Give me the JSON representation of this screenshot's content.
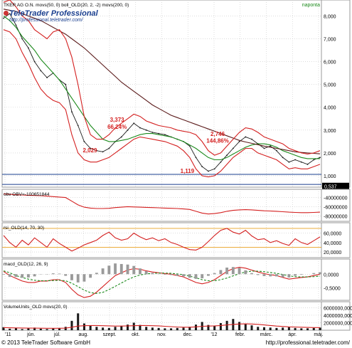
{
  "footer": {
    "copyright": "© 2013 TeleTrader Software GmbH",
    "url": "http://professional.teletrader.com/"
  },
  "logo": {
    "name": "TeleTrader Professional",
    "url": "http://professional.teletrader.com/"
  },
  "chart_data": [
    {
      "panel": "price",
      "type": "line",
      "legend_text": "TKER AG O.N.  movs(50, 0)  boll_OLD(20, 2, -2)  movs(200, 0)",
      "period_label": "naponta",
      "x_labels": [
        "'11",
        "jún.",
        "júl.",
        "aug.",
        "szept.",
        "okt.",
        "nov.",
        "dec.",
        "'12",
        "febr.",
        "márc.",
        "ápr.",
        "máj."
      ],
      "y_ticks": [
        "8,000",
        "7,000",
        "6,000",
        "5,000",
        "4,000",
        "3,000",
        "2,000",
        "1,000"
      ],
      "ylim": [
        0.5,
        8.7
      ],
      "y_values": [
        8,
        7,
        6,
        5,
        4,
        3,
        2,
        1
      ],
      "last_value_badge": "0,537",
      "annotations": [
        {
          "label": "3,373",
          "x": 0.36,
          "y": 3.373
        },
        {
          "label": "66,24%",
          "x": 0.36,
          "y": 3.05
        },
        {
          "label": "2,029",
          "x": 0.275,
          "y": 2.029
        },
        {
          "label": "2,746",
          "x": 0.675,
          "y": 2.746
        },
        {
          "label": "144,86%",
          "x": 0.675,
          "y": 2.45
        },
        {
          "label": "1,119",
          "x": 0.58,
          "y": 1.119
        }
      ],
      "series": [
        {
          "name": "price",
          "color": "#1a1a1a",
          "values": [
            7.9,
            8.1,
            7.6,
            7.0,
            6.6,
            6.0,
            5.6,
            5.3,
            5.5,
            5.2,
            5.0,
            3.8,
            3.2,
            2.5,
            2.2,
            2.1,
            2.05,
            2.2,
            2.5,
            2.7,
            3.0,
            3.3,
            3.1,
            3.0,
            2.9,
            2.85,
            2.8,
            2.7,
            2.6,
            2.5,
            2.3,
            1.8,
            1.4,
            1.2,
            1.3,
            1.6,
            1.9,
            2.2,
            2.5,
            2.7,
            2.6,
            2.4,
            2.2,
            2.3,
            2.1,
            1.8,
            1.6,
            1.7,
            1.6,
            1.5,
            1.7,
            1.8
          ]
        },
        {
          "name": "movs50",
          "color": "#1c8a1c",
          "values": [
            8.0,
            7.8,
            7.5,
            7.1,
            6.8,
            6.5,
            6.1,
            5.8,
            5.5,
            5.2,
            4.8,
            4.4,
            4.0,
            3.6,
            3.2,
            2.9,
            2.6,
            2.5,
            2.5,
            2.55,
            2.6,
            2.7,
            2.8,
            2.85,
            2.85,
            2.8,
            2.75,
            2.7,
            2.6,
            2.5,
            2.35,
            2.2,
            2.0,
            1.8,
            1.7,
            1.7,
            1.8,
            1.95,
            2.1,
            2.25,
            2.35,
            2.4,
            2.4,
            2.35,
            2.25,
            2.1,
            2.0,
            1.9,
            1.8,
            1.75,
            1.75,
            1.75
          ]
        },
        {
          "name": "movs200",
          "color": "#5a1a1a",
          "values": [
            8.3,
            8.25,
            8.2,
            8.1,
            8.0,
            7.9,
            7.8,
            7.65,
            7.5,
            7.35,
            7.2,
            7.0,
            6.8,
            6.6,
            6.35,
            6.1,
            5.85,
            5.6,
            5.35,
            5.1,
            4.9,
            4.7,
            4.5,
            4.3,
            4.1,
            3.95,
            3.8,
            3.65,
            3.55,
            3.45,
            3.35,
            3.25,
            3.15,
            3.05,
            2.95,
            2.85,
            2.75,
            2.65,
            2.55,
            2.48,
            2.42,
            2.36,
            2.3,
            2.25,
            2.2,
            2.15,
            2.1,
            2.05,
            2.02,
            2.0,
            1.98,
            1.96
          ]
        },
        {
          "name": "boll_upper",
          "color": "#d42020",
          "values": [
            8.6,
            8.7,
            8.4,
            8.0,
            7.8,
            7.4,
            7.2,
            7.0,
            7.3,
            7.4,
            7.0,
            6.2,
            5.0,
            3.6,
            2.8,
            2.6,
            2.6,
            2.8,
            3.1,
            3.3,
            3.5,
            3.7,
            3.6,
            3.4,
            3.3,
            3.2,
            3.15,
            3.1,
            3.0,
            2.95,
            2.9,
            2.8,
            2.5,
            2.1,
            1.9,
            2.0,
            2.3,
            2.6,
            2.9,
            3.1,
            3.05,
            2.9,
            2.7,
            2.6,
            2.5,
            2.4,
            2.2,
            2.1,
            2.0,
            1.95,
            2.0,
            2.1
          ]
        },
        {
          "name": "boll_lower",
          "color": "#d42020",
          "values": [
            7.4,
            7.3,
            7.0,
            6.4,
            5.9,
            5.3,
            4.8,
            4.5,
            4.3,
            4.2,
            3.9,
            2.8,
            2.0,
            1.7,
            1.6,
            1.6,
            1.7,
            1.8,
            2.0,
            2.2,
            2.4,
            2.6,
            2.7,
            2.65,
            2.6,
            2.55,
            2.5,
            2.4,
            2.3,
            2.1,
            1.8,
            1.3,
            1.0,
            0.95,
            1.0,
            1.2,
            1.5,
            1.8,
            2.0,
            2.2,
            2.2,
            2.0,
            1.9,
            1.8,
            1.7,
            1.5,
            1.3,
            1.35,
            1.3,
            1.3,
            1.4,
            1.5
          ]
        }
      ]
    },
    {
      "panel": "obv",
      "type": "line",
      "legend_text": "obv  OBV=-100651844",
      "y_ticks": [
        "-40000000",
        "-60000000",
        "-80000000"
      ],
      "y_values": [
        -40000000,
        -60000000,
        -80000000
      ],
      "ylim": [
        -92000000,
        -22000000
      ],
      "series": [
        {
          "name": "OBV",
          "color": "#d42020",
          "values": [
            -32000000,
            -33000000,
            -34000000,
            -34500000,
            -35000000,
            -35500000,
            -36000000,
            -37000000,
            -38000000,
            -39000000,
            -40000000,
            -48000000,
            -56000000,
            -61000000,
            -63000000,
            -64000000,
            -64000000,
            -63500000,
            -62000000,
            -61000000,
            -60000000,
            -60500000,
            -61000000,
            -61500000,
            -62000000,
            -62500000,
            -63000000,
            -63500000,
            -64000000,
            -65000000,
            -66000000,
            -70000000,
            -74000000,
            -76000000,
            -75000000,
            -73000000,
            -70000000,
            -68000000,
            -67000000,
            -66500000,
            -67000000,
            -68000000,
            -69000000,
            -69500000,
            -70000000,
            -71000000,
            -72000000,
            -72500000,
            -73000000,
            -73000000,
            -72500000,
            -72000000
          ]
        }
      ]
    },
    {
      "panel": "rsi",
      "type": "line",
      "legend_text": "rsi_OLD(14, 70, 30)",
      "y_ticks": [
        "60,0000",
        "40,0000",
        "20,0000"
      ],
      "y_values": [
        60,
        40,
        20
      ],
      "ylim": [
        8,
        82
      ],
      "bands": [
        70,
        30
      ],
      "series": [
        {
          "name": "RSI",
          "color": "#d42020",
          "values": [
            55,
            40,
            30,
            45,
            35,
            50,
            40,
            30,
            48,
            38,
            30,
            22,
            28,
            35,
            40,
            45,
            55,
            62,
            50,
            45,
            48,
            60,
            52,
            46,
            50,
            44,
            48,
            40,
            36,
            30,
            25,
            24,
            30,
            42,
            55,
            66,
            70,
            62,
            58,
            66,
            54,
            46,
            48,
            40,
            44,
            38,
            34,
            48,
            40,
            36,
            44,
            52
          ]
        }
      ]
    },
    {
      "panel": "macd",
      "type": "line",
      "legend_text": "macd_OLD(12, 26, 9)",
      "y_ticks": [
        "0,0000",
        "-0,5000"
      ],
      "y_values": [
        0,
        -0.5
      ],
      "ylim": [
        -0.95,
        0.55
      ],
      "series": [
        {
          "name": "MACD",
          "color": "#d42020",
          "values": [
            0.1,
            -0.05,
            -0.15,
            -0.25,
            -0.3,
            -0.3,
            -0.25,
            -0.25,
            -0.2,
            -0.2,
            -0.3,
            -0.55,
            -0.75,
            -0.85,
            -0.8,
            -0.65,
            -0.45,
            -0.25,
            -0.05,
            0.05,
            0.15,
            0.2,
            0.18,
            0.12,
            0.08,
            0.05,
            0.02,
            0.0,
            -0.05,
            -0.1,
            -0.2,
            -0.3,
            -0.35,
            -0.3,
            -0.2,
            -0.05,
            0.1,
            0.2,
            0.25,
            0.22,
            0.15,
            0.08,
            0.02,
            -0.02,
            -0.05,
            -0.12,
            -0.18,
            -0.15,
            -0.12,
            -0.1,
            -0.05,
            0.0
          ]
        },
        {
          "name": "Signal",
          "color": "#1c8a1c",
          "values": [
            0.12,
            0.05,
            -0.05,
            -0.12,
            -0.18,
            -0.22,
            -0.24,
            -0.24,
            -0.23,
            -0.22,
            -0.24,
            -0.33,
            -0.45,
            -0.58,
            -0.67,
            -0.7,
            -0.66,
            -0.56,
            -0.44,
            -0.32,
            -0.2,
            -0.1,
            -0.03,
            0.01,
            0.03,
            0.04,
            0.04,
            0.03,
            0.01,
            -0.02,
            -0.07,
            -0.13,
            -0.2,
            -0.24,
            -0.24,
            -0.2,
            -0.14,
            -0.06,
            0.02,
            0.08,
            0.11,
            0.11,
            0.09,
            0.06,
            0.03,
            -0.01,
            -0.06,
            -0.09,
            -0.1,
            -0.1,
            -0.09,
            -0.07
          ]
        },
        {
          "name": "Histogram",
          "color": "#888888",
          "values": [
            -0.02,
            -0.1,
            -0.1,
            -0.13,
            -0.12,
            -0.08,
            -0.01,
            -0.01,
            0.03,
            0.02,
            -0.06,
            -0.22,
            -0.3,
            -0.27,
            -0.13,
            0.05,
            0.21,
            0.31,
            0.39,
            0.37,
            0.35,
            0.3,
            0.21,
            0.11,
            0.05,
            0.01,
            -0.02,
            -0.03,
            -0.06,
            -0.08,
            -0.13,
            -0.17,
            -0.15,
            -0.06,
            0.04,
            0.15,
            0.24,
            0.26,
            0.23,
            0.14,
            0.04,
            -0.03,
            -0.07,
            -0.08,
            -0.08,
            -0.11,
            -0.12,
            -0.06,
            -0.02,
            0.0,
            0.04,
            0.07
          ]
        }
      ]
    },
    {
      "panel": "volume",
      "type": "bar",
      "legend_text": "VolumeUnits_OLD  movs(20, 0)",
      "y_ticks": [
        "6000000,0000",
        "4000000,0000",
        "2000000,0000"
      ],
      "y_values": [
        6000000,
        4000000,
        2000000
      ],
      "ylim": [
        0,
        7600000
      ],
      "series": [
        {
          "name": "Volume",
          "color": "#1a1a1a",
          "values": [
            800000,
            400000,
            600000,
            300000,
            500000,
            700000,
            400000,
            300000,
            500000,
            600000,
            900000,
            2500000,
            4500000,
            1800000,
            1200000,
            900000,
            700000,
            600000,
            900000,
            1200000,
            1500000,
            2000000,
            1400000,
            900000,
            700000,
            600000,
            500000,
            500000,
            600000,
            700000,
            900000,
            1500000,
            2200000,
            1400000,
            1200000,
            1900000,
            2500000,
            3000000,
            2200000,
            1700000,
            1300000,
            900000,
            800000,
            700000,
            600000,
            700000,
            800000,
            600000,
            500000,
            500000,
            600000,
            700000
          ]
        },
        {
          "name": "movs20",
          "color": "#d42020",
          "values": [
            700000,
            650000,
            600000,
            580000,
            560000,
            550000,
            540000,
            520000,
            510000,
            520000,
            560000,
            800000,
            1100000,
            1200000,
            1250000,
            1250000,
            1200000,
            1150000,
            1100000,
            1100000,
            1150000,
            1200000,
            1250000,
            1250000,
            1200000,
            1150000,
            1050000,
            950000,
            850000,
            800000,
            800000,
            900000,
            1050000,
            1100000,
            1150000,
            1250000,
            1400000,
            1550000,
            1650000,
            1700000,
            1650000,
            1550000,
            1400000,
            1250000,
            1100000,
            1000000,
            900000,
            850000,
            800000,
            750000,
            700000,
            700000
          ]
        }
      ]
    }
  ]
}
